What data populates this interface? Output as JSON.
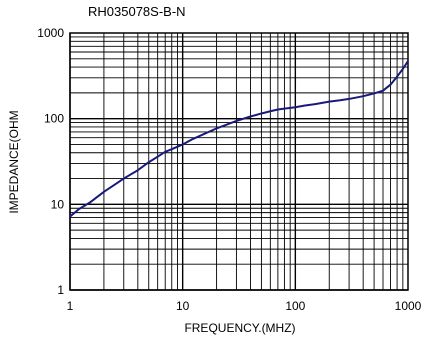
{
  "chart_data": {
    "type": "line",
    "title": "RH035078S-B-N",
    "xlabel": "FREQUENCY.(MHZ)",
    "ylabel": "IMPEDANCE(OHM",
    "x_scale": "log",
    "y_scale": "log",
    "xlim": [
      1,
      1000
    ],
    "ylim": [
      1,
      1000
    ],
    "x_ticks": [
      "1",
      "10",
      "100",
      "1000"
    ],
    "y_ticks": [
      "1",
      "10",
      "100",
      "1000"
    ],
    "grid": true,
    "legend": "none",
    "colors": {
      "line": "#1a1a7a",
      "grid": "#000000",
      "background": "#ffffff"
    },
    "series": [
      {
        "x": [
          1,
          1.2,
          1.5,
          2,
          2.5,
          3,
          4,
          5,
          6,
          7,
          8,
          10,
          12,
          15,
          20,
          25,
          30,
          40,
          50,
          60,
          70,
          80,
          100,
          120,
          150,
          200,
          250,
          300,
          400,
          500,
          600,
          700,
          800,
          900,
          1000
        ],
        "y": [
          7.2,
          8.8,
          10.5,
          14,
          17,
          20,
          25,
          31,
          36,
          41,
          44,
          50,
          57,
          65,
          77,
          86,
          94,
          106,
          115,
          122,
          128,
          131,
          136,
          142,
          148,
          158,
          164,
          170,
          183,
          197,
          212,
          250,
          310,
          380,
          470
        ]
      }
    ]
  }
}
